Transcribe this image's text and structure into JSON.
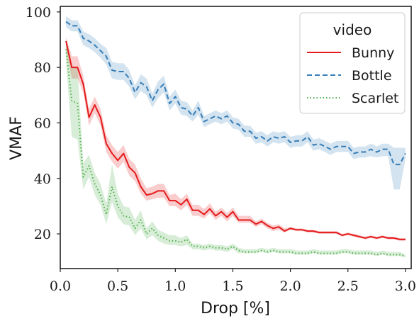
{
  "chart_data": {
    "type": "line",
    "xlabel": "Drop [%]",
    "ylabel": "VMAF",
    "xlim": [
      0.0,
      3.05
    ],
    "ylim": [
      7.5,
      102
    ],
    "x_ticks": [
      0.0,
      0.5,
      1.0,
      1.5,
      2.0,
      2.5,
      3.0
    ],
    "x_tick_labels": [
      "0.0",
      "0.5",
      "1.0",
      "1.5",
      "2.0",
      "2.5",
      "3.0"
    ],
    "y_ticks": [
      20,
      40,
      60,
      80,
      100
    ],
    "y_tick_labels": [
      "20",
      "40",
      "60",
      "80",
      "100"
    ],
    "grid": false,
    "legend": {
      "title": "video",
      "position": "top-right"
    },
    "x": [
      0.05,
      0.1,
      0.15,
      0.2,
      0.25,
      0.3,
      0.35,
      0.4,
      0.45,
      0.5,
      0.55,
      0.6,
      0.65,
      0.7,
      0.75,
      0.8,
      0.85,
      0.9,
      0.95,
      1.0,
      1.05,
      1.1,
      1.15,
      1.2,
      1.25,
      1.3,
      1.35,
      1.4,
      1.45,
      1.5,
      1.55,
      1.6,
      1.65,
      1.7,
      1.75,
      1.8,
      1.85,
      1.9,
      1.95,
      2.0,
      2.05,
      2.1,
      2.15,
      2.2,
      2.25,
      2.3,
      2.35,
      2.4,
      2.45,
      2.5,
      2.55,
      2.6,
      2.65,
      2.7,
      2.75,
      2.8,
      2.85,
      2.9,
      2.95,
      3.0
    ],
    "series": [
      {
        "name": "Bunny",
        "color": "#e41a1c",
        "dash": "solid",
        "y": [
          89.5,
          80,
          80,
          74,
          62,
          66.5,
          62,
          52.5,
          49,
          46.5,
          49,
          44,
          42,
          37,
          34,
          34.5,
          35.5,
          35.5,
          32,
          32,
          30.5,
          32.5,
          28.5,
          28.5,
          27,
          29,
          26.5,
          28,
          26,
          28,
          25,
          25,
          25,
          23.5,
          24.5,
          23,
          22,
          22.5,
          21,
          22,
          21.5,
          21.5,
          21,
          21,
          20.5,
          20.5,
          20.5,
          20.5,
          19.5,
          20,
          19.5,
          19,
          18.5,
          19,
          18.5,
          19,
          18.5,
          18.5,
          18,
          18
        ],
        "ci_low": [
          86,
          76,
          76,
          71,
          59,
          63.5,
          59,
          49.5,
          46,
          43.5,
          46,
          41,
          39,
          34.5,
          32,
          32.5,
          33,
          33,
          30,
          30,
          28.5,
          30.5,
          26.5,
          26.5,
          25.5,
          27.5,
          25,
          26.5,
          24.5,
          26.5,
          24,
          24,
          24,
          22.5,
          23.5,
          22,
          21,
          21.5,
          20.5,
          21.5,
          21,
          21,
          20.5,
          20.5,
          20,
          20,
          20,
          20,
          19,
          19.5,
          19,
          18.5,
          18,
          18.5,
          18,
          18.5,
          18,
          18,
          17.5,
          17.5
        ],
        "ci_high": [
          91,
          84,
          84,
          77,
          65,
          69.5,
          65,
          55.5,
          52,
          49.5,
          52,
          47,
          45,
          40,
          36.5,
          37,
          38,
          38,
          34,
          34.5,
          32.5,
          34.5,
          30.5,
          30.5,
          29,
          31,
          28,
          29.5,
          27.5,
          29.5,
          26.5,
          26.5,
          26.5,
          24.5,
          25.5,
          24,
          23,
          23.5,
          22,
          22.5,
          22,
          22,
          21.5,
          21.5,
          21,
          21,
          21,
          21,
          20,
          20.5,
          20,
          19.5,
          19,
          19.5,
          19,
          19.5,
          19,
          19,
          18.5,
          18.5
        ]
      },
      {
        "name": "Bottle",
        "color": "#377eb8",
        "dash": "dashed",
        "y": [
          96.5,
          95,
          95,
          90.5,
          89.5,
          88,
          86,
          84,
          79,
          78.5,
          78.5,
          76,
          71,
          74.5,
          73,
          68,
          72,
          74,
          67,
          69.5,
          65.5,
          65,
          62.5,
          65.5,
          60.5,
          61.5,
          62.5,
          61.5,
          62.5,
          60,
          59.5,
          57,
          57,
          54.5,
          55,
          53.5,
          55,
          54.5,
          55,
          53,
          53.5,
          53.5,
          55,
          52,
          52.5,
          51.5,
          50.5,
          51.5,
          51.5,
          51.5,
          49,
          49.5,
          49.5,
          50.5,
          49.5,
          50.5,
          50.5,
          45,
          45,
          49
        ],
        "ci_low": [
          94.5,
          93,
          93,
          88,
          87,
          85.5,
          83.5,
          81,
          76,
          75.5,
          75.5,
          73,
          68.5,
          71.5,
          70,
          65.5,
          69,
          71,
          64.5,
          67,
          63,
          62.5,
          60.5,
          63,
          58.5,
          59.5,
          60.5,
          59.5,
          60.5,
          58,
          57.5,
          55,
          55,
          52.5,
          53,
          51.5,
          53,
          52.5,
          53,
          51,
          51.5,
          51.5,
          53,
          50,
          50.5,
          49.5,
          48.5,
          49.5,
          49.5,
          49.5,
          47,
          47.5,
          47.5,
          48,
          47.5,
          48,
          48,
          36,
          36,
          47
        ],
        "ci_high": [
          98.5,
          97,
          97,
          93,
          92,
          90.5,
          88.5,
          87,
          82,
          81.5,
          81.5,
          79,
          73.5,
          77.5,
          76,
          70.5,
          75,
          77,
          69.5,
          72,
          68,
          67.5,
          64.5,
          68,
          62.5,
          63.5,
          64.5,
          63.5,
          64.5,
          62,
          61.5,
          59,
          59,
          56.5,
          57,
          55.5,
          57,
          56.5,
          57,
          55,
          55.5,
          55.5,
          57,
          54,
          54.5,
          53.5,
          52.5,
          53.5,
          53.5,
          53.5,
          51,
          51.5,
          51.5,
          52.5,
          51.5,
          52.5,
          52.5,
          51,
          51,
          51
        ]
      },
      {
        "name": "Scarlet",
        "color": "#4daf4a",
        "dash": "dotted",
        "y": [
          86.5,
          68,
          67,
          40.5,
          44.5,
          38,
          34,
          27,
          37,
          30,
          26.5,
          26,
          22,
          25,
          20,
          22,
          19.5,
          18.5,
          17.5,
          17.5,
          17,
          18,
          15.5,
          15.5,
          15,
          15.5,
          15,
          15,
          14.5,
          15.5,
          14,
          13.5,
          13.5,
          13.5,
          14,
          13.5,
          14,
          13.5,
          13.5,
          13.5,
          13,
          13,
          13,
          13.5,
          13,
          13,
          13,
          13,
          13.5,
          13.5,
          13,
          13,
          13,
          13,
          12.5,
          13,
          12.5,
          12.5,
          12.5,
          12
        ],
        "ci_low": [
          82,
          55,
          54,
          36,
          40.5,
          34,
          30.5,
          23.5,
          31.5,
          26,
          23.5,
          23,
          19.5,
          22,
          18,
          19.5,
          17.5,
          16.5,
          16,
          16,
          15.5,
          16,
          14.5,
          14.5,
          14,
          14.5,
          14,
          14,
          13.5,
          14.5,
          13,
          13,
          13,
          13,
          13.5,
          13,
          13.5,
          13,
          13,
          13,
          12.5,
          12.5,
          12.5,
          13,
          12.5,
          12.5,
          12.5,
          12.5,
          13,
          13,
          12.5,
          12.5,
          12.5,
          12.5,
          12,
          12.5,
          12,
          12,
          12,
          11.5
        ],
        "ci_high": [
          89,
          80,
          80,
          45.5,
          48.5,
          42,
          38,
          31,
          45,
          34.5,
          30,
          29.5,
          25,
          28.5,
          22,
          24.5,
          21.5,
          20.5,
          19.5,
          19.5,
          18.5,
          19.5,
          16.5,
          16.5,
          16,
          16.5,
          16,
          16,
          15.5,
          16.5,
          15,
          14.5,
          14.5,
          14.5,
          15,
          14.5,
          15,
          14.5,
          14.5,
          14.5,
          14,
          14,
          14,
          14.5,
          14,
          14,
          14,
          14,
          14.5,
          14.5,
          14,
          14,
          14,
          14,
          13.5,
          14,
          13.5,
          13.5,
          13.5,
          12.5
        ]
      }
    ]
  }
}
